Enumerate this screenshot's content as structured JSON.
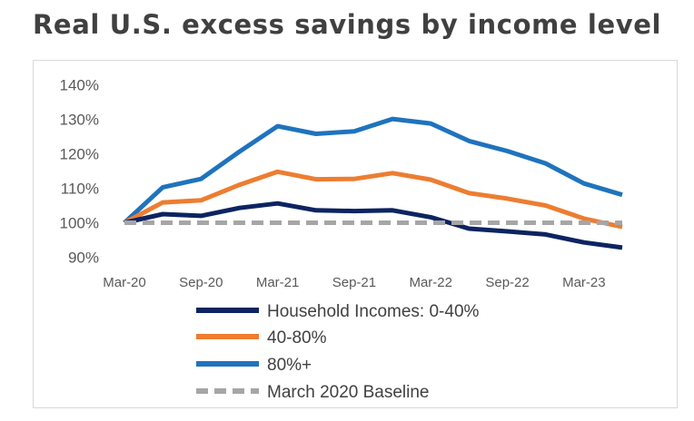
{
  "chart_data": {
    "type": "line",
    "title": "Real U.S. excess savings by income level",
    "x": [
      "Mar-20",
      "Jun-20",
      "Sep-20",
      "Dec-20",
      "Mar-21",
      "Jun-21",
      "Sep-21",
      "Dec-21",
      "Mar-22",
      "Jun-22",
      "Sep-22",
      "Dec-22",
      "Mar-23",
      "Jun-23"
    ],
    "x_tick_labels": [
      "Mar-20",
      "Sep-20",
      "Mar-21",
      "Sep-21",
      "Mar-22",
      "Sep-22",
      "Mar-23"
    ],
    "y_tick_labels": [
      "90%",
      "100%",
      "110%",
      "120%",
      "130%",
      "140%"
    ],
    "ylim": [
      90,
      140
    ],
    "y_unit": "%",
    "grid": false,
    "legend_position": "bottom",
    "series": [
      {
        "name": "Household Incomes: 0-40%",
        "color": "#0c2461",
        "dash": "solid",
        "values": [
          100,
          102.5,
          102,
          104.3,
          105.6,
          103.6,
          103.4,
          103.6,
          101.6,
          98.3,
          97.5,
          96.6,
          94.3,
          92.8
        ]
      },
      {
        "name": "40-80%",
        "color": "#ed7d31",
        "dash": "solid",
        "values": [
          100,
          105.9,
          106.5,
          111,
          114.8,
          112.6,
          112.7,
          114.4,
          112.5,
          108.6,
          107,
          105,
          101.2,
          98.8
        ]
      },
      {
        "name": "80%+",
        "color": "#1f73bd",
        "dash": "solid",
        "values": [
          100,
          110.3,
          112.7,
          120.6,
          128,
          125.8,
          126.5,
          130.1,
          128.8,
          123.7,
          120.8,
          117.2,
          111.4,
          108.1
        ]
      },
      {
        "name": "March 2020 Baseline",
        "color": "#a6a6a6",
        "dash": "dashed",
        "values": [
          100,
          100,
          100,
          100,
          100,
          100,
          100,
          100,
          100,
          100,
          100,
          100,
          100,
          100
        ]
      }
    ]
  }
}
